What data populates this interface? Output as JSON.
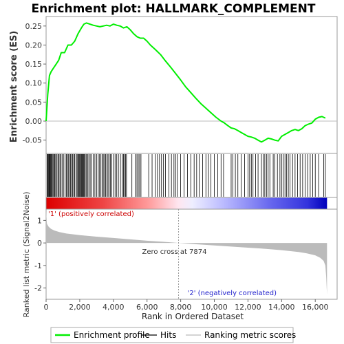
{
  "chart_data": {
    "type": "line",
    "title": "Enrichment plot: HALLMARK_COMPLEMENT",
    "enrichment_panel": {
      "ylabel": "Enrichment score (ES)",
      "ylim": [
        -0.085,
        0.275
      ],
      "yticks": [
        "-0.05",
        "0.00",
        "0.05",
        "0.10",
        "0.15",
        "0.20",
        "0.25"
      ],
      "ytick_values": [
        -0.05,
        0.0,
        0.05,
        0.1,
        0.15,
        0.2,
        0.25
      ],
      "series": [
        {
          "color": "#00ee00",
          "x": [
            0,
            100,
            200,
            300,
            450,
            600,
            750,
            900,
            1100,
            1300,
            1500,
            1700,
            1900,
            2100,
            2250,
            2400,
            2600,
            2800,
            3000,
            3200,
            3400,
            3600,
            3800,
            4000,
            4200,
            4400,
            4600,
            4800,
            5000,
            5200,
            5400,
            5600,
            5800,
            6000,
            6200,
            6500,
            6800,
            7100,
            7400,
            7700,
            8000,
            8300,
            8600,
            8900,
            9200,
            9500,
            9800,
            10100,
            10400,
            10600,
            10800,
            11000,
            11200,
            11400,
            11600,
            11800,
            12000,
            12200,
            12400,
            12600,
            12800,
            13000,
            13200,
            13400,
            13600,
            13800,
            14000,
            14200,
            14400,
            14600,
            14800,
            15000,
            15200,
            15400,
            15600,
            15800,
            16000,
            16200,
            16400,
            16600
          ],
          "y": [
            0.0,
            0.07,
            0.12,
            0.13,
            0.14,
            0.15,
            0.16,
            0.18,
            0.18,
            0.2,
            0.2,
            0.21,
            0.23,
            0.245,
            0.255,
            0.258,
            0.255,
            0.252,
            0.25,
            0.248,
            0.25,
            0.252,
            0.25,
            0.255,
            0.252,
            0.25,
            0.245,
            0.248,
            0.24,
            0.23,
            0.222,
            0.218,
            0.218,
            0.21,
            0.2,
            0.188,
            0.175,
            0.158,
            0.142,
            0.125,
            0.108,
            0.09,
            0.075,
            0.06,
            0.046,
            0.034,
            0.022,
            0.01,
            0.0,
            -0.005,
            -0.012,
            -0.018,
            -0.02,
            -0.025,
            -0.03,
            -0.035,
            -0.04,
            -0.042,
            -0.045,
            -0.05,
            -0.055,
            -0.05,
            -0.045,
            -0.047,
            -0.05,
            -0.052,
            -0.04,
            -0.035,
            -0.03,
            -0.025,
            -0.022,
            -0.025,
            -0.02,
            -0.012,
            -0.008,
            -0.005,
            0.005,
            0.01,
            0.012,
            0.008
          ]
        }
      ],
      "zero_line": true
    },
    "hits_panel": {
      "hit_positions": [
        60,
        90,
        130,
        170,
        210,
        240,
        280,
        320,
        360,
        410,
        460,
        510,
        570,
        620,
        700,
        760,
        820,
        880,
        950,
        1030,
        1120,
        1200,
        1260,
        1320,
        1380,
        1450,
        1510,
        1570,
        1640,
        1700,
        1780,
        1840,
        1890,
        1940,
        1990,
        2040,
        2080,
        2120,
        2160,
        2200,
        2240,
        2280,
        2330,
        2400,
        2470,
        2540,
        2620,
        2700,
        2800,
        2900,
        3000,
        3100,
        3180,
        3260,
        3330,
        3400,
        3470,
        3540,
        3610,
        3680,
        3750,
        3830,
        3910,
        4000,
        4100,
        4200,
        4300,
        4420,
        4530,
        4600,
        4660,
        4720,
        4780,
        5100,
        5300,
        5400,
        5480,
        5560,
        5640,
        6100,
        6300,
        6500,
        6620,
        6740,
        6860,
        6980,
        7100,
        7300,
        7450,
        7600,
        7700,
        7800,
        8000,
        8200,
        8400,
        8600,
        8800,
        8950,
        9100,
        9300,
        9500,
        9650,
        9800,
        10000,
        10200,
        10400,
        10550,
        11000,
        11100,
        11250,
        11400,
        11600,
        11800,
        12000,
        12100,
        12200,
        12300,
        12450,
        12600,
        12800,
        12900,
        13000,
        13100,
        13200,
        13300,
        13500,
        13600,
        13750,
        13900,
        14000,
        14100,
        14200,
        14300,
        14400,
        14500,
        14650,
        14800,
        14950,
        15100,
        15250,
        15400,
        15550,
        15700,
        15850,
        16000,
        16200,
        16500,
        16600
      ]
    },
    "ranking_panel": {
      "ylabel": "Ranked list metric (Signal2Noise)",
      "ylim": [
        -2.5,
        1.5
      ],
      "yticks": [
        "-2",
        "-1",
        "0",
        "1"
      ],
      "ytick_values": [
        -2,
        -1,
        0,
        1
      ],
      "color": "#bbbbbb",
      "x": [
        0,
        50,
        150,
        300,
        500,
        800,
        1200,
        2000,
        3000,
        4000,
        5000,
        6000,
        7000,
        7874,
        9000,
        10000,
        11000,
        12000,
        13000,
        14000,
        15000,
        15500,
        16000,
        16300,
        16500,
        16600,
        16650,
        16700
      ],
      "y": [
        1.4,
        0.85,
        0.72,
        0.62,
        0.55,
        0.48,
        0.42,
        0.35,
        0.28,
        0.22,
        0.16,
        0.1,
        0.05,
        0.0,
        -0.06,
        -0.11,
        -0.16,
        -0.21,
        -0.26,
        -0.32,
        -0.4,
        -0.46,
        -0.55,
        -0.66,
        -0.8,
        -1.0,
        -1.5,
        -2.3
      ],
      "zero_cross_label": "Zero cross at 7874",
      "positive_label": "'1' (positively correlated)",
      "negative_label": "'2' (negatively correlated)"
    },
    "xaxis": {
      "xlabel": "Rank in Ordered Dataset",
      "xlim": [
        0,
        17300
      ],
      "xticks": [
        "0",
        "2,000",
        "4,000",
        "6,000",
        "8,000",
        "10,000",
        "12,000",
        "14,000",
        "16,000"
      ],
      "xtick_values": [
        0,
        2000,
        4000,
        6000,
        8000,
        10000,
        12000,
        14000,
        16000
      ],
      "n_genes": 16700
    },
    "legend": {
      "placement": "bottom",
      "items": [
        {
          "label": "Enrichment profile",
          "color": "#00ee00"
        },
        {
          "label": "Hits",
          "color": "#000000"
        },
        {
          "label": "Ranking metric scores",
          "color": "#bbbbbb"
        }
      ]
    }
  }
}
